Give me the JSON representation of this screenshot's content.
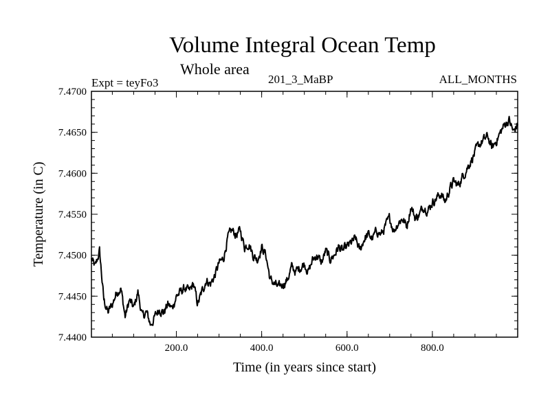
{
  "chart_data": {
    "type": "line",
    "title": "Volume Integral Ocean Temp",
    "subtitle": "Whole area",
    "expt_label": "Expt = teyFo3",
    "period_label": "201_3_MaBP",
    "months_label": "ALL_MONTHS",
    "xlabel": "Time (in years since start)",
    "ylabel": "Temperature (in C)",
    "xlim": [
      1,
      1000
    ],
    "ylim": [
      7.44,
      7.47
    ],
    "x_ticks": [
      200,
      400,
      600,
      800
    ],
    "x_tick_labels": [
      "200.0",
      "400.0",
      "600.0",
      "800.0"
    ],
    "y_ticks": [
      7.44,
      7.445,
      7.45,
      7.455,
      7.46,
      7.465,
      7.47
    ],
    "y_tick_labels": [
      "7.4400",
      "7.4450",
      "7.4500",
      "7.4550",
      "7.4600",
      "7.4650",
      "7.4700"
    ],
    "series": [
      {
        "name": "Volume Integral Ocean Temp",
        "x": [
          1,
          10,
          20,
          25,
          30,
          40,
          50,
          60,
          70,
          80,
          90,
          100,
          110,
          120,
          130,
          140,
          150,
          160,
          170,
          180,
          190,
          200,
          210,
          220,
          230,
          240,
          250,
          260,
          270,
          280,
          290,
          300,
          310,
          320,
          330,
          340,
          350,
          360,
          370,
          380,
          390,
          400,
          410,
          420,
          430,
          440,
          450,
          460,
          470,
          480,
          490,
          500,
          510,
          520,
          530,
          540,
          550,
          560,
          570,
          580,
          590,
          600,
          610,
          620,
          630,
          640,
          650,
          660,
          670,
          680,
          690,
          700,
          710,
          720,
          730,
          740,
          750,
          760,
          770,
          780,
          790,
          800,
          810,
          820,
          830,
          840,
          850,
          860,
          870,
          880,
          890,
          900,
          910,
          920,
          930,
          940,
          950,
          960,
          970,
          980,
          990,
          1000
        ],
        "values": [
          7.4495,
          7.4485,
          7.4505,
          7.4475,
          7.4445,
          7.443,
          7.444,
          7.4455,
          7.446,
          7.4425,
          7.4445,
          7.4435,
          7.4455,
          7.4425,
          7.443,
          7.4415,
          7.4425,
          7.4435,
          7.443,
          7.444,
          7.4435,
          7.445,
          7.4455,
          7.446,
          7.4455,
          7.4465,
          7.444,
          7.4455,
          7.447,
          7.4465,
          7.4475,
          7.449,
          7.4495,
          7.452,
          7.453,
          7.4525,
          7.453,
          7.451,
          7.4515,
          7.45,
          7.4495,
          7.451,
          7.45,
          7.447,
          7.4465,
          7.446,
          7.4465,
          7.447,
          7.4485,
          7.448,
          7.4485,
          7.449,
          7.448,
          7.4495,
          7.45,
          7.449,
          7.4505,
          7.4495,
          7.45,
          7.451,
          7.4505,
          7.451,
          7.4515,
          7.452,
          7.4505,
          7.452,
          7.4525,
          7.452,
          7.453,
          7.4525,
          7.4535,
          7.4545,
          7.453,
          7.454,
          7.4545,
          7.4535,
          7.456,
          7.4545,
          7.455,
          7.456,
          7.4555,
          7.4565,
          7.457,
          7.4575,
          7.4565,
          7.458,
          7.459,
          7.4585,
          7.4595,
          7.4605,
          7.4615,
          7.4625,
          7.4635,
          7.464,
          7.4645,
          7.463,
          7.464,
          7.465,
          7.466,
          7.4665,
          7.465,
          7.466
        ]
      }
    ]
  }
}
